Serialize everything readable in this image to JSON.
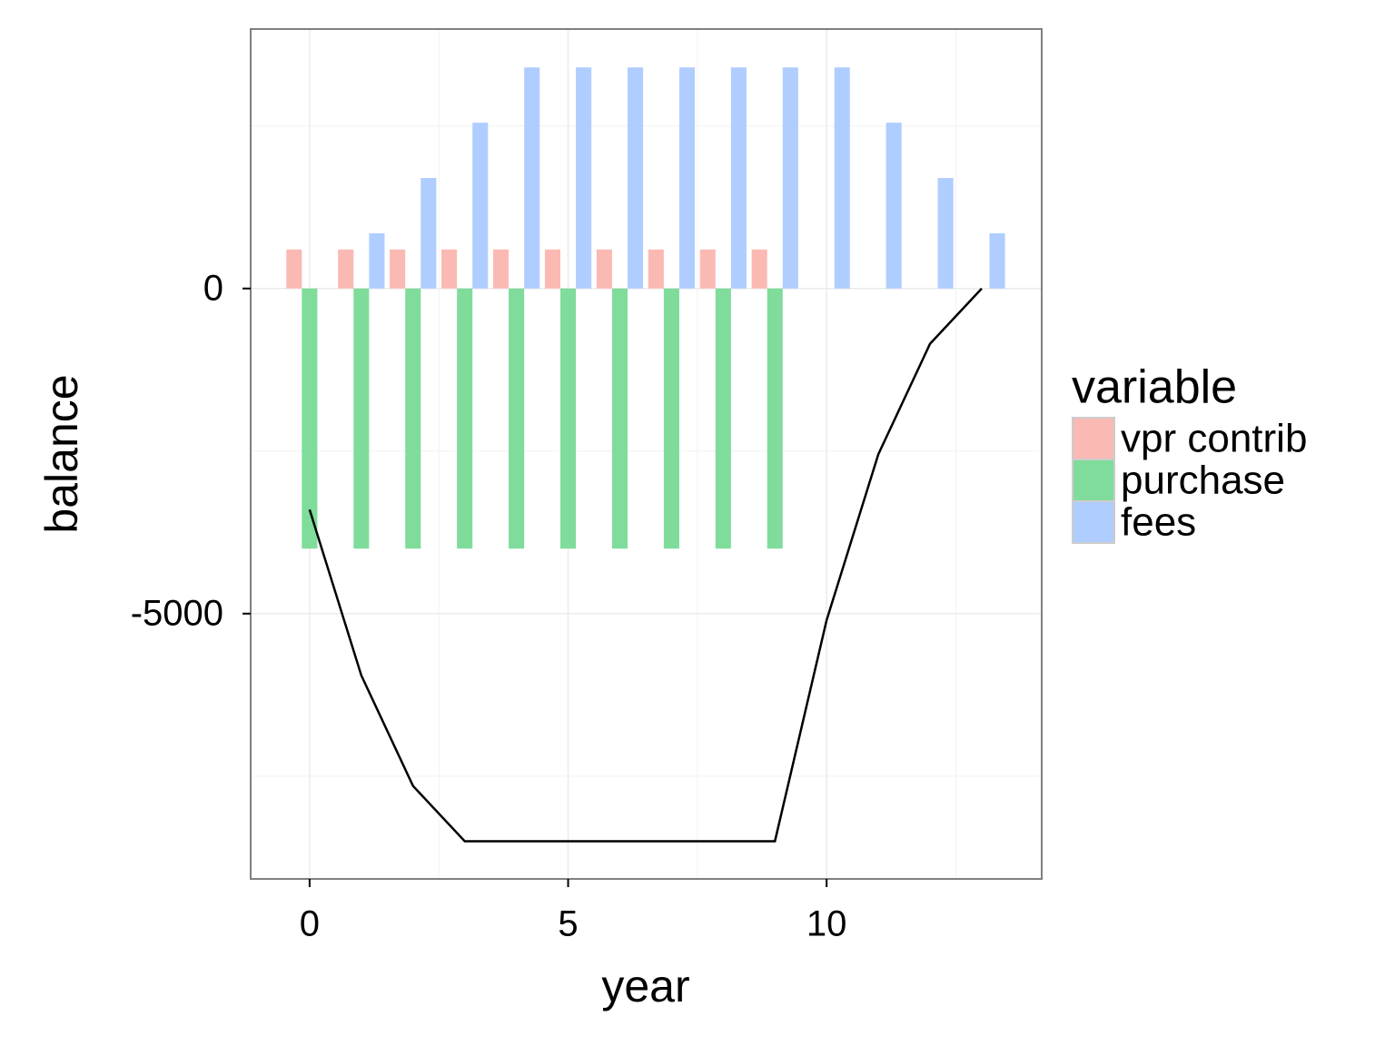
{
  "chart_data": {
    "type": "bar",
    "x_label": "year",
    "y_label": "balance",
    "x": [
      0,
      1,
      2,
      3,
      4,
      5,
      6,
      7,
      8,
      9,
      10,
      11,
      12,
      13
    ],
    "series": [
      {
        "name": "vpr contrib",
        "color": "#fbb9b4",
        "values": [
          600,
          600,
          600,
          600,
          600,
          600,
          600,
          600,
          600,
          600,
          null,
          null,
          null,
          null
        ]
      },
      {
        "name": "purchase",
        "color": "#7fdc9b",
        "values": [
          -4000,
          -4000,
          -4000,
          -4000,
          -4000,
          -4000,
          -4000,
          -4000,
          -4000,
          -4000,
          null,
          null,
          null,
          null
        ]
      },
      {
        "name": "fees",
        "color": "#b0cdff",
        "values": [
          null,
          850,
          1700,
          2550,
          3400,
          3400,
          3400,
          3400,
          3400,
          3400,
          3400,
          2550,
          1700,
          850
        ]
      }
    ],
    "line": {
      "color": "#000000",
      "values": [
        -3400,
        -5950,
        -7650,
        -8500,
        -8500,
        -8500,
        -8500,
        -8500,
        -8500,
        -8500,
        -5100,
        -2550,
        -850,
        0
      ]
    },
    "legend_title": "variable",
    "xlim": [
      -1.14,
      14.16
    ],
    "ylim": [
      -9080,
      3990
    ],
    "xticks": [
      0,
      5,
      10
    ],
    "yticks": [
      -5000,
      0
    ],
    "grid": true
  }
}
